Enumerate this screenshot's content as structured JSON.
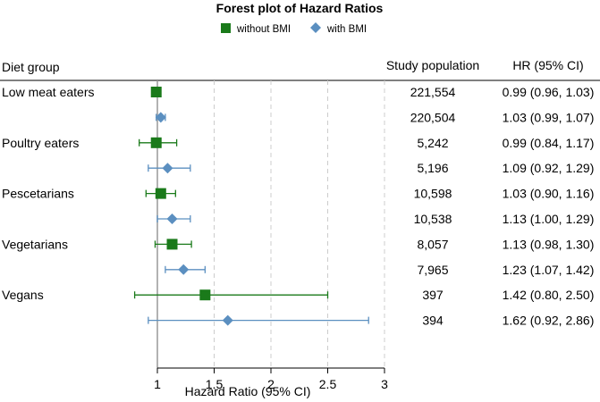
{
  "chart_data": {
    "type": "forest",
    "title": "Forest plot of Hazard Ratios",
    "legend": [
      {
        "name": "without BMI",
        "marker": "square",
        "color": "#1a7a1a"
      },
      {
        "name": "with BMI",
        "marker": "diamond",
        "color": "#5b8fc0"
      }
    ],
    "columns": {
      "group": "Diet group",
      "population": "Study population",
      "hr": "HR (95% CI)"
    },
    "xlabel": "Hazard Ratio (95% CI)",
    "xlim": [
      0.5,
      3
    ],
    "xticks": [
      "1",
      "1.5",
      "2",
      "2.5",
      "3"
    ],
    "reference_line": 1,
    "rows": [
      {
        "group": "Low meat eaters",
        "series": "without BMI",
        "hr": 0.99,
        "lo": 0.96,
        "hi": 1.03,
        "population": "221,554",
        "hr_text": "0.99 (0.96, 1.03)"
      },
      {
        "group": "",
        "series": "with BMI",
        "hr": 1.03,
        "lo": 0.99,
        "hi": 1.07,
        "population": "220,504",
        "hr_text": "1.03 (0.99, 1.07)"
      },
      {
        "group": "Poultry eaters",
        "series": "without BMI",
        "hr": 0.99,
        "lo": 0.84,
        "hi": 1.17,
        "population": "5,242",
        "hr_text": "0.99 (0.84, 1.17)"
      },
      {
        "group": "",
        "series": "with BMI",
        "hr": 1.09,
        "lo": 0.92,
        "hi": 1.29,
        "population": "5,196",
        "hr_text": "1.09 (0.92, 1.29)"
      },
      {
        "group": "Pescetarians",
        "series": "without BMI",
        "hr": 1.03,
        "lo": 0.9,
        "hi": 1.16,
        "population": "10,598",
        "hr_text": "1.03 (0.90, 1.16)"
      },
      {
        "group": "",
        "series": "with BMI",
        "hr": 1.13,
        "lo": 1.0,
        "hi": 1.29,
        "population": "10,538",
        "hr_text": "1.13 (1.00, 1.29)"
      },
      {
        "group": "Vegetarians",
        "series": "without BMI",
        "hr": 1.13,
        "lo": 0.98,
        "hi": 1.3,
        "population": "8,057",
        "hr_text": "1.13 (0.98, 1.30)"
      },
      {
        "group": "",
        "series": "with BMI",
        "hr": 1.23,
        "lo": 1.07,
        "hi": 1.42,
        "population": "7,965",
        "hr_text": "1.23 (1.07, 1.42)"
      },
      {
        "group": "Vegans",
        "series": "without BMI",
        "hr": 1.42,
        "lo": 0.8,
        "hi": 2.5,
        "population": "397",
        "hr_text": "1.42 (0.80, 2.50)"
      },
      {
        "group": "",
        "series": "with BMI",
        "hr": 1.62,
        "lo": 0.92,
        "hi": 2.86,
        "population": "394",
        "hr_text": "1.62 (0.92, 2.86)"
      }
    ]
  }
}
